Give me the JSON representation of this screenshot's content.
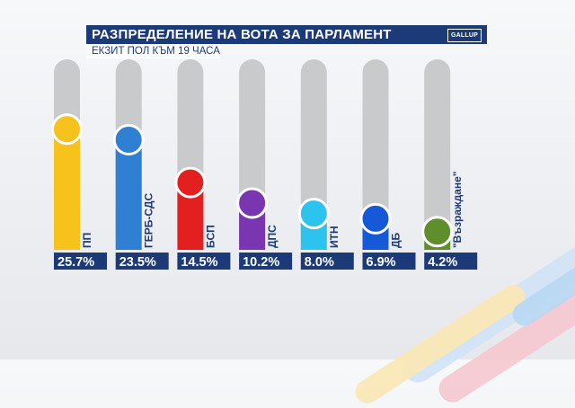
{
  "header": {
    "title": "РАЗПРЕДЕЛЕНИЕ НА ВОТА ЗА ПАРЛАМЕНТ",
    "subtitle": "ЕКЗИТ ПОЛ КЪМ 19 ЧАСА",
    "logo_text": "GALLUP"
  },
  "colors": {
    "label_box_bg": "#1d3a78",
    "track": "#c9cacc",
    "title_bg": "#1d3a78"
  },
  "chart_data": {
    "type": "bar",
    "title": "РАЗПРЕДЕЛЕНИЕ НА ВОТА ЗА ПАРЛАМЕНТ",
    "subtitle": "ЕКЗИТ ПОЛ КЪМ 19 ЧАСА",
    "unit": "%",
    "categories": [
      "ПП",
      "ГЕРБ-СДС",
      "БСП",
      "ДПС",
      "ИТН",
      "ДБ",
      "\"Възраждане\""
    ],
    "values": [
      25.7,
      23.5,
      14.5,
      10.2,
      8.0,
      6.9,
      4.2
    ],
    "value_labels": [
      "25.7%",
      "23.5%",
      "14.5%",
      "10.2%",
      "8.0%",
      "6.9%",
      "4.2%"
    ],
    "colors": [
      "#f6c21b",
      "#2f7fd2",
      "#e41f1f",
      "#7a35b0",
      "#2cc3ef",
      "#1659d6",
      "#5f8f2c"
    ],
    "ylim": [
      0,
      40
    ],
    "grid": false,
    "legend": "none"
  }
}
